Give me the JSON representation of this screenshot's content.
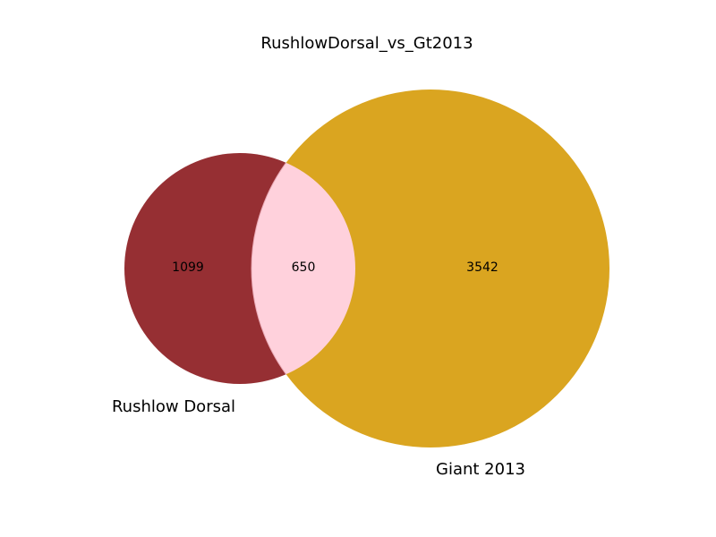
{
  "diagram": {
    "title": "RushlowDorsal_vs_Gt2013",
    "sets": [
      {
        "name": "Rushlow Dorsal",
        "only_count": "1099",
        "color": "#962F33"
      },
      {
        "name": "Giant 2013",
        "only_count": "3542",
        "color": "#DAA520"
      }
    ],
    "overlap": {
      "count": "650",
      "color": "#FFD1DC"
    }
  }
}
